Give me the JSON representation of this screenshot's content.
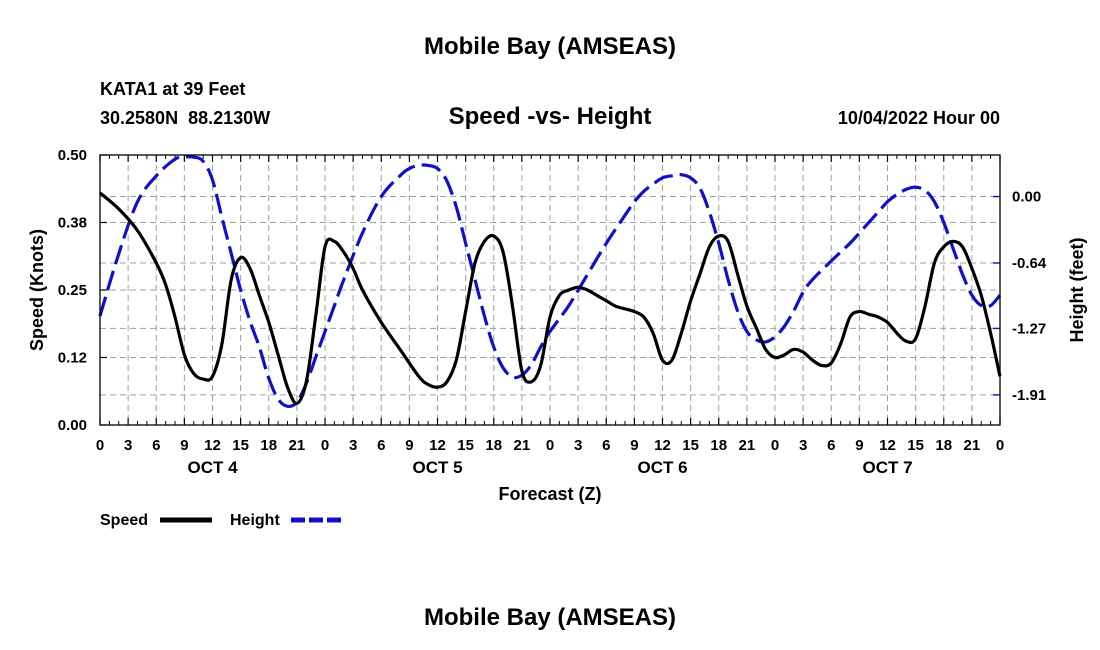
{
  "page": {
    "title": "Mobile Bay (AMSEAS)",
    "footer_title": "Mobile Bay (AMSEAS)",
    "station_line1": "KATA1 at 39 Feet",
    "station_line2": "30.2580N  88.2130W",
    "date_label": "10/04/2022 Hour 00"
  },
  "colors": {
    "speed": "#000000",
    "height": "#1010c8",
    "grid": "#a0a0a0"
  },
  "chart_data": {
    "type": "line",
    "title": "Speed -vs- Height",
    "xlabel": "Forecast (Z)",
    "ylabel": "Speed (Knots)",
    "y2label": "Height (feet)",
    "xlim": [
      0,
      96
    ],
    "ylim": [
      0,
      0.5
    ],
    "y2lim": [
      -2.2,
      0.4
    ],
    "x_tick_labels": [
      "0",
      "3",
      "6",
      "9",
      "12",
      "15",
      "18",
      "21",
      "0",
      "3",
      "6",
      "9",
      "12",
      "15",
      "18",
      "21",
      "0",
      "3",
      "6",
      "9",
      "12",
      "15",
      "18",
      "21",
      "0",
      "3",
      "6",
      "9",
      "12",
      "15",
      "18",
      "21",
      "0"
    ],
    "y_ticks": [
      0,
      0.125,
      0.25,
      0.375,
      0.5
    ],
    "y_tick_labels": [
      "0.00",
      "0.12",
      "0.25",
      "0.38",
      "0.50"
    ],
    "y2_ticks": [
      0.0,
      -0.64,
      -1.27,
      -1.91
    ],
    "y2_tick_labels": [
      "0.00",
      "-0.64",
      "-1.27",
      "-1.91"
    ],
    "day_labels": [
      {
        "label": "OCT 4",
        "x": 12
      },
      {
        "label": "OCT 5",
        "x": 36
      },
      {
        "label": "OCT 6",
        "x": 60
      },
      {
        "label": "OCT 7",
        "x": 84
      }
    ],
    "legend": [
      {
        "name": "Speed",
        "style": "solid"
      },
      {
        "name": "Height",
        "style": "dashed"
      }
    ],
    "series": [
      {
        "name": "Speed",
        "axis": "left",
        "x": [
          0,
          2,
          4,
          6,
          7,
          8,
          9,
          10,
          11,
          12,
          13,
          14,
          15,
          16,
          17,
          18,
          19,
          20,
          21,
          22,
          23,
          24,
          25,
          26,
          27,
          28,
          30,
          32,
          34,
          35,
          36,
          37,
          38,
          39,
          40,
          41,
          42,
          43,
          44,
          45,
          46,
          47,
          48,
          49,
          50,
          51,
          52,
          53,
          54,
          55,
          56,
          57,
          58,
          59,
          60,
          61,
          62,
          63,
          64,
          65,
          66,
          67,
          68,
          69,
          70,
          71,
          72,
          73,
          74,
          75,
          76,
          77,
          78,
          79,
          80,
          81,
          82,
          83,
          84,
          85,
          86,
          87,
          88,
          89,
          90,
          91,
          92,
          93,
          94,
          95,
          96
        ],
        "values": [
          0.43,
          0.4,
          0.36,
          0.3,
          0.26,
          0.2,
          0.13,
          0.095,
          0.085,
          0.09,
          0.15,
          0.27,
          0.31,
          0.29,
          0.24,
          0.19,
          0.13,
          0.07,
          0.04,
          0.08,
          0.2,
          0.33,
          0.34,
          0.32,
          0.29,
          0.25,
          0.19,
          0.14,
          0.09,
          0.075,
          0.07,
          0.08,
          0.12,
          0.21,
          0.3,
          0.34,
          0.35,
          0.32,
          0.22,
          0.1,
          0.08,
          0.11,
          0.2,
          0.24,
          0.25,
          0.255,
          0.25,
          0.24,
          0.23,
          0.22,
          0.215,
          0.21,
          0.2,
          0.17,
          0.12,
          0.12,
          0.17,
          0.23,
          0.28,
          0.33,
          0.35,
          0.34,
          0.28,
          0.22,
          0.18,
          0.14,
          0.125,
          0.13,
          0.14,
          0.135,
          0.12,
          0.11,
          0.115,
          0.15,
          0.2,
          0.21,
          0.205,
          0.2,
          0.19,
          0.17,
          0.155,
          0.16,
          0.22,
          0.3,
          0.33,
          0.34,
          0.33,
          0.29,
          0.24,
          0.17,
          0.09
        ]
      },
      {
        "name": "Height",
        "axis": "right",
        "x": [
          0,
          2,
          4,
          6,
          8,
          9,
          10,
          11,
          12,
          13,
          14,
          15,
          16,
          17,
          18,
          19,
          20,
          21,
          22,
          23,
          24,
          25,
          26,
          28,
          30,
          32,
          33,
          34,
          35,
          36,
          37,
          38,
          39,
          40,
          41,
          42,
          43,
          44,
          45,
          46,
          47,
          48,
          50,
          52,
          54,
          56,
          57,
          58,
          59,
          60,
          61,
          62,
          63,
          64,
          65,
          66,
          67,
          68,
          69,
          70,
          71,
          72,
          73,
          74,
          75,
          76,
          78,
          80,
          81,
          82,
          83,
          84,
          85,
          86,
          87,
          88,
          89,
          90,
          91,
          92,
          93,
          94,
          95,
          96
        ],
        "values": [
          -1.15,
          -0.55,
          -0.05,
          0.2,
          0.36,
          0.38,
          0.38,
          0.34,
          0.16,
          -0.2,
          -0.55,
          -0.9,
          -1.2,
          -1.45,
          -1.75,
          -1.95,
          -2.02,
          -1.98,
          -1.8,
          -1.55,
          -1.3,
          -1.05,
          -0.8,
          -0.35,
          0.0,
          0.2,
          0.27,
          0.3,
          0.3,
          0.27,
          0.15,
          -0.1,
          -0.45,
          -0.8,
          -1.15,
          -1.45,
          -1.65,
          -1.74,
          -1.72,
          -1.62,
          -1.45,
          -1.3,
          -1.05,
          -0.75,
          -0.45,
          -0.18,
          -0.05,
          0.05,
          0.12,
          0.18,
          0.2,
          0.21,
          0.18,
          0.08,
          -0.15,
          -0.45,
          -0.8,
          -1.1,
          -1.3,
          -1.38,
          -1.4,
          -1.35,
          -1.25,
          -1.1,
          -0.92,
          -0.8,
          -0.62,
          -0.45,
          -0.35,
          -0.25,
          -0.15,
          -0.05,
          0.02,
          0.07,
          0.09,
          0.06,
          -0.05,
          -0.25,
          -0.5,
          -0.75,
          -0.95,
          -1.05,
          -1.05,
          -0.95
        ]
      }
    ]
  }
}
